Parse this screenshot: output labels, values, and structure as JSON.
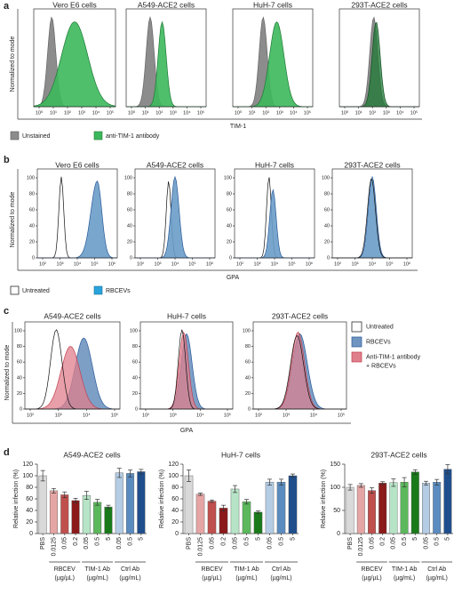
{
  "panels": {
    "a": {
      "label": "a",
      "titles": [
        "Vero E6 cells",
        "A549-ACE2 cells",
        "HuH-7 cells",
        "293T-ACE2 cells"
      ],
      "ylabel": "Normalized to mode",
      "xlabel": "TIM-1",
      "xticks": [
        "10⁰",
        "10¹",
        "10²",
        "10³",
        "10⁴",
        "10⁵"
      ],
      "legend": [
        "Unstained",
        "anti-TIM-1 antibody"
      ]
    },
    "b": {
      "label": "b",
      "titles": [
        "Vero E6 cells",
        "A549-ACE2 cells",
        "HuH-7 cells",
        "293T-ACE2 cells"
      ],
      "ylabel": "Normalized to mode",
      "xlabel": "GPA",
      "yticks": [
        0,
        20,
        40,
        60,
        80,
        100
      ],
      "xticks": [
        "10²",
        "10³",
        "10⁴",
        "10⁵",
        "10⁶"
      ],
      "legend": [
        "Untreated",
        "RBCEVs"
      ]
    },
    "c": {
      "label": "c",
      "titles": [
        "A549-ACE2 cells",
        "HuH-7 cells",
        "293T-ACE2 cells"
      ],
      "ylabel": "Normalized to mode",
      "xlabel": "GPA",
      "yticks": [
        0,
        20,
        40,
        60,
        80,
        100
      ],
      "xticks": [
        "10²",
        "10³",
        "10⁴",
        "10⁵"
      ],
      "legend": [
        [
          "Untreated"
        ],
        [
          "RBCEVs"
        ],
        [
          "Anti-TIM-1 antibody",
          "+ RBCEVs"
        ]
      ]
    },
    "d": {
      "label": "d"
    }
  },
  "chart_data": [
    {
      "type": "bar",
      "title": "A549-ACE2 cells",
      "ylabel": "Relative infection (%)",
      "categories": [
        "PBS",
        "0.0125",
        "0.05",
        "0.2",
        "0.05",
        "0.5",
        "5",
        "0.05",
        "0.5",
        "5"
      ],
      "values": [
        100,
        74,
        67,
        57,
        66,
        54,
        46,
        105,
        104,
        107
      ],
      "errors": [
        9,
        4,
        5,
        4,
        7,
        5,
        3,
        8,
        6,
        4
      ],
      "colors": [
        "#d9d9d9",
        "#e6a5a5",
        "#c0504d",
        "#8b1a1a",
        "#b7e4c7",
        "#5cb85c",
        "#1a7a1a",
        "#b4cce4",
        "#5b8cc0",
        "#1f4e8c"
      ],
      "ylim": [
        0,
        120
      ],
      "yticks": [
        0,
        20,
        40,
        60,
        80,
        100,
        120
      ],
      "groups": [
        {
          "name": "RBCEV",
          "unit": "(µg/µL)"
        },
        {
          "name": "TIM-1 Ab",
          "unit": "(µg/mL)"
        },
        {
          "name": "Ctrl Ab",
          "unit": "(µg/mL)"
        }
      ]
    },
    {
      "type": "bar",
      "title": "HuH-7 cells",
      "ylabel": "Relative infection (%)",
      "categories": [
        "PBS",
        "0.0125",
        "0.05",
        "0.2",
        "0.05",
        "0.5",
        "5",
        "0.05",
        "0.5",
        "5"
      ],
      "values": [
        100,
        68,
        56,
        44,
        77,
        55,
        37,
        89,
        89,
        100
      ],
      "errors": [
        10,
        2,
        2,
        5,
        6,
        4,
        2,
        5,
        5,
        3
      ],
      "colors": [
        "#d9d9d9",
        "#e6a5a5",
        "#c0504d",
        "#8b1a1a",
        "#b7e4c7",
        "#5cb85c",
        "#1a7a1a",
        "#b4cce4",
        "#5b8cc0",
        "#1f4e8c"
      ],
      "ylim": [
        0,
        120
      ],
      "yticks": [
        0,
        20,
        40,
        60,
        80,
        100,
        120
      ],
      "groups": [
        {
          "name": "RBCEV",
          "unit": "(µg/µL)"
        },
        {
          "name": "TIM-1 Ab",
          "unit": "(µg/mL)"
        },
        {
          "name": "Ctrl Ab",
          "unit": "(µg/mL)"
        }
      ]
    },
    {
      "type": "bar",
      "title": "293T-ACE2 cells",
      "ylabel": "Relative infection (%)",
      "categories": [
        "PBS",
        "0.0125",
        "0.05",
        "0.2",
        "0.05",
        "0.5",
        "5",
        "0.05",
        "0.5",
        "5"
      ],
      "values": [
        100,
        104,
        93,
        109,
        110,
        111,
        133,
        109,
        111,
        139
      ],
      "errors": [
        6,
        4,
        6,
        3,
        8,
        10,
        5,
        4,
        6,
        10
      ],
      "colors": [
        "#d9d9d9",
        "#e6a5a5",
        "#c0504d",
        "#8b1a1a",
        "#b7e4c7",
        "#5cb85c",
        "#1a7a1a",
        "#b4cce4",
        "#5b8cc0",
        "#1f4e8c"
      ],
      "ylim": [
        0,
        150
      ],
      "yticks": [
        0,
        50,
        100,
        150
      ],
      "groups": [
        {
          "name": "RBCEV",
          "unit": "(µg/µL)"
        },
        {
          "name": "TIM-1 Ab",
          "unit": "(µg/mL)"
        },
        {
          "name": "Ctrl Ab",
          "unit": "(µg/mL)"
        }
      ]
    }
  ]
}
